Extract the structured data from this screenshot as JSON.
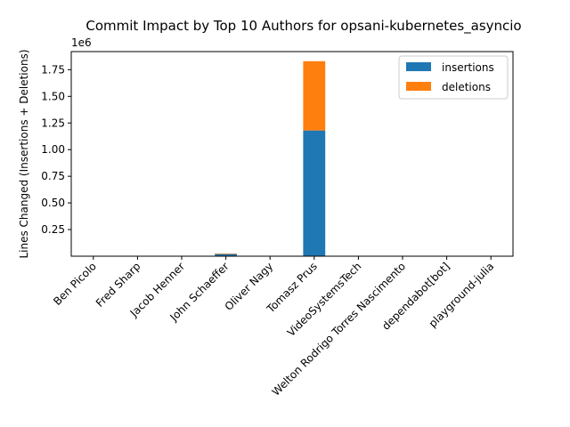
{
  "chart_data": {
    "type": "bar",
    "stacked": true,
    "title": "Commit Impact by Top 10 Authors for opsani-kubernetes_asyncio",
    "xlabel": "",
    "ylabel": "Lines Changed (Insertions + Deletions)",
    "y_offset_label": "1e6",
    "ylim": [
      0,
      1920000
    ],
    "yticks": [
      250000,
      500000,
      750000,
      1000000,
      1250000,
      1500000,
      1750000
    ],
    "ytick_labels": [
      "0.25",
      "0.50",
      "0.75",
      "1.00",
      "1.25",
      "1.50",
      "1.75"
    ],
    "categories": [
      "Ben Picolo",
      "Fred Sharp",
      "Jacob Henner",
      "John Schaeffer",
      "Oliver Nagy",
      "Tomasz Prus",
      "VideoSystemsTech",
      "Welton Rodrigo Torres Nascimento",
      "dependabot[bot]",
      "playground-julia"
    ],
    "series": [
      {
        "name": "insertions",
        "color": "#1f77b4",
        "values": [
          500,
          1000,
          1000,
          20000,
          500,
          1180000,
          500,
          500,
          100,
          500
        ]
      },
      {
        "name": "deletions",
        "color": "#ff7f0e",
        "values": [
          200,
          500,
          500,
          5000,
          200,
          650000,
          200,
          200,
          100,
          200
        ]
      }
    ],
    "legend": {
      "placement": "upper-right"
    },
    "grid": false
  }
}
